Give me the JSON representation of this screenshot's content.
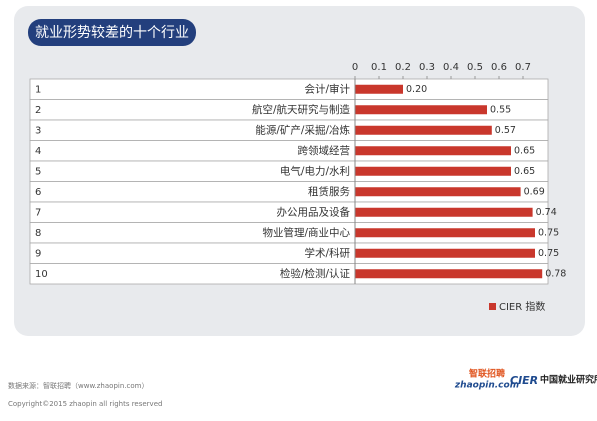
{
  "chart_data": {
    "type": "barh",
    "title": "就业形势较差的十个行业",
    "ranks": [
      "1",
      "2",
      "3",
      "4",
      "5",
      "6",
      "7",
      "8",
      "9",
      "10"
    ],
    "categories": [
      "会计/审计",
      "航空/航天研究与制造",
      "能源/矿产/采掘/冶炼",
      "跨领域经营",
      "电气/电力/水利",
      "租赁服务",
      "办公用品及设备",
      "物业管理/商业中心",
      "学术/科研",
      "检验/检测/认证"
    ],
    "series": [
      {
        "name": "CIER 指数",
        "color": "#c9372c",
        "values": [
          0.2,
          0.55,
          0.57,
          0.65,
          0.65,
          0.69,
          0.74,
          0.75,
          0.75,
          0.78
        ],
        "value_labels": [
          "0.20",
          "0.55",
          "0.57",
          "0.65",
          "0.65",
          "0.69",
          "0.74",
          "0.75",
          "0.75",
          "0.78"
        ]
      }
    ],
    "xlim": [
      0,
      0.8
    ],
    "xticks": [
      0,
      0.1,
      0.2,
      0.3,
      0.4,
      0.5,
      0.6,
      0.7
    ],
    "legend": "bottom-right"
  },
  "footer": {
    "source": "数据来源：智联招聘（www.zhaopin.com）",
    "copyright": "Copyright©2015 zhaopin all rights reserved",
    "logo_zhaopin": "zhaopin.com",
    "logo_zhaopin_cn": "智联招聘",
    "logo_cier": "CIER",
    "logo_cier_cn": "中国就业研究所"
  }
}
